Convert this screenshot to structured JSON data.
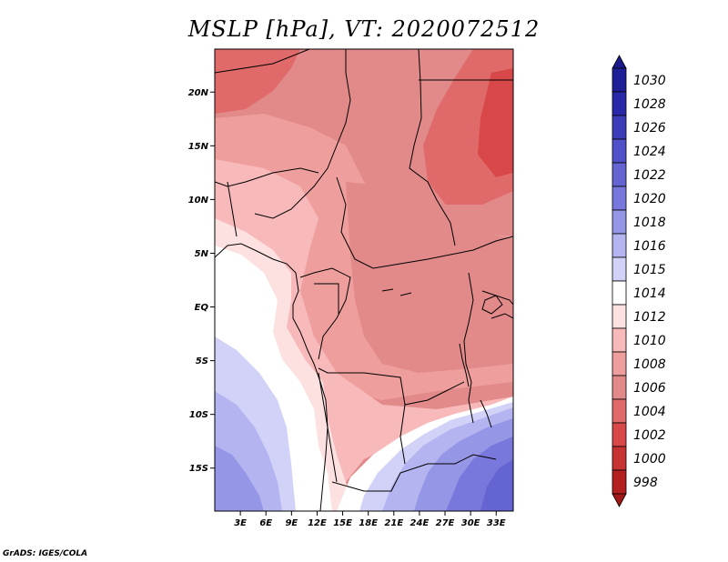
{
  "title": "MSLP [hPa], VT: 2020072512",
  "footer": "GrADS: IGES/COLA",
  "map": {
    "lon_range": [
      0,
      35
    ],
    "lat_range": [
      -19,
      24
    ],
    "lat_ticks": [
      {
        "value": 20,
        "label": "20N"
      },
      {
        "value": 15,
        "label": "15N"
      },
      {
        "value": 10,
        "label": "10N"
      },
      {
        "value": 5,
        "label": "5N"
      },
      {
        "value": 0,
        "label": "EQ"
      },
      {
        "value": -5,
        "label": "5S"
      },
      {
        "value": -10,
        "label": "10S"
      },
      {
        "value": -15,
        "label": "15S"
      }
    ],
    "lon_ticks": [
      {
        "value": 3,
        "label": "3E"
      },
      {
        "value": 6,
        "label": "6E"
      },
      {
        "value": 9,
        "label": "9E"
      },
      {
        "value": 12,
        "label": "12E"
      },
      {
        "value": 15,
        "label": "15E"
      },
      {
        "value": 18,
        "label": "18E"
      },
      {
        "value": 21,
        "label": "21E"
      },
      {
        "value": 24,
        "label": "24E"
      },
      {
        "value": 27,
        "label": "27E"
      },
      {
        "value": 30,
        "label": "30E"
      },
      {
        "value": 33,
        "label": "33E"
      }
    ]
  },
  "colorbar": {
    "levels": [
      {
        "label": "1030",
        "color": "#1e1e96"
      },
      {
        "label": "1028",
        "color": "#2828a8"
      },
      {
        "label": "1026",
        "color": "#3c3cb9"
      },
      {
        "label": "1024",
        "color": "#5050c8"
      },
      {
        "label": "1022",
        "color": "#6464d2"
      },
      {
        "label": "1020",
        "color": "#7878dc"
      },
      {
        "label": "1018",
        "color": "#9696e6"
      },
      {
        "label": "1016",
        "color": "#b4b4f0"
      },
      {
        "label": "1015",
        "color": "#d2d2f8"
      },
      {
        "label": "1014",
        "color": "#ffffff"
      },
      {
        "label": "1012",
        "color": "#fde1e1"
      },
      {
        "label": "1010",
        "color": "#f7b9b9"
      },
      {
        "label": "1008",
        "color": "#ef9e9e"
      },
      {
        "label": "1006",
        "color": "#e28a8a"
      },
      {
        "label": "1004",
        "color": "#e06a6a"
      },
      {
        "label": "1002",
        "color": "#d84848"
      },
      {
        "label": "1000",
        "color": "#c83232"
      },
      {
        "label": "998",
        "color": "#b42020"
      }
    ],
    "top_color": "#1a1a8c",
    "bottom_color": "#a01818"
  }
}
